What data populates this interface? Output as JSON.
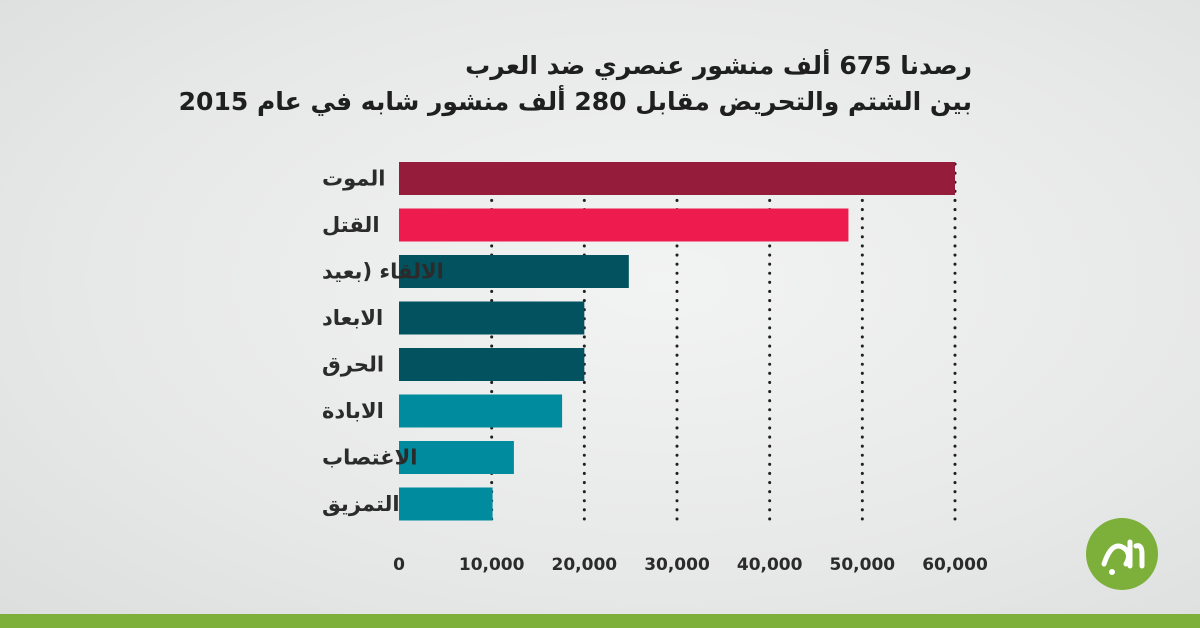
{
  "title": {
    "line1": "رصدنا 675 ألف منشور عنصري ضد العرب",
    "line2": "بين الشتم والتحريض مقابل 280 ألف منشور شابه في عام 2015"
  },
  "chart_data": {
    "type": "bar",
    "orientation": "horizontal",
    "title": "رصدنا 675 ألف منشور عنصري ضد العرب بين الشتم والتحريض مقابل 280 ألف منشور شابه في عام 2015",
    "categories": [
      "الموت",
      "القتل",
      "الالقاء (بعيد",
      "الابعاد",
      "الحرق",
      "الابادة",
      "الاغتصاب",
      "التمزيق"
    ],
    "values": [
      60000,
      48500,
      24800,
      20000,
      20000,
      17600,
      12400,
      10100
    ],
    "colors": [
      "#961c3c",
      "#ee1b4f",
      "#02525f",
      "#02525f",
      "#02525f",
      "#008c9e",
      "#008c9e",
      "#008c9e"
    ],
    "xticks": [
      0,
      10000,
      20000,
      30000,
      40000,
      50000,
      60000
    ],
    "xtick_labels": [
      "0",
      "10,000",
      "20,000",
      "30,000",
      "40,000",
      "50,000",
      "60,000"
    ],
    "xlim": [
      0,
      60000
    ],
    "grid": "vertical-dotted",
    "legend": "none",
    "xlabel": "",
    "ylabel": ""
  },
  "logo": {
    "color": "#7cb03a",
    "icon": "hamla-logo"
  },
  "footer": {
    "bar_color": "#7cb03a"
  }
}
